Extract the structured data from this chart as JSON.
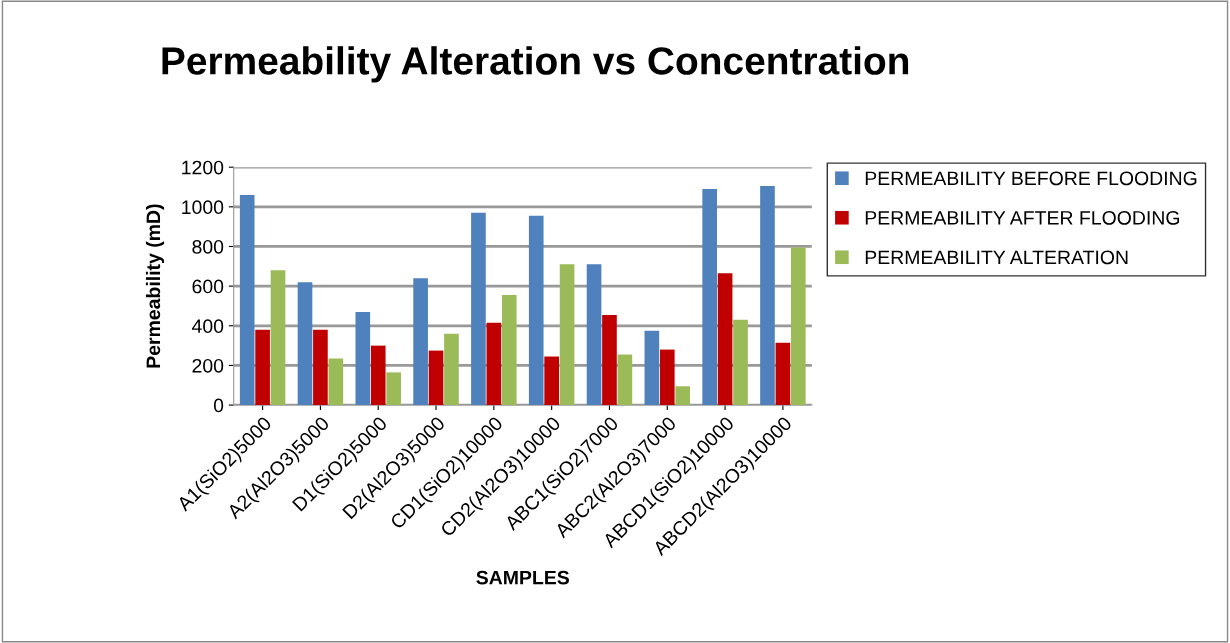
{
  "chart_data": {
    "type": "bar",
    "title": "Permeability Alteration vs Concentration",
    "xlabel": "SAMPLES",
    "ylabel": "Permeability (mD)",
    "categories": [
      "A1(SiO2)5000",
      "A2(Al2O3)5000",
      "D1(SiO2)5000",
      "D2(Al2O3)5000",
      "CD1(SiO2)10000",
      "CD2(Al2O3)10000",
      "ABC1(SiO2)7000",
      "ABC2(Al2O3)7000",
      "ABCD1(SiO2)10000",
      "ABCD2(Al2O3)10000"
    ],
    "series": [
      {
        "name": "PERMEABILITY BEFORE FLOODING",
        "color": "#4f81bd",
        "values": [
          1060,
          620,
          470,
          640,
          970,
          955,
          710,
          375,
          1090,
          1105
        ]
      },
      {
        "name": "PERMEABILITY AFTER FLOODING",
        "color": "#c00000",
        "values": [
          380,
          380,
          300,
          275,
          415,
          245,
          455,
          280,
          665,
          315
        ]
      },
      {
        "name": "PERMEABILITY ALTERATION",
        "color": "#9bbb59",
        "values": [
          680,
          235,
          165,
          360,
          555,
          710,
          255,
          95,
          430,
          795
        ]
      }
    ],
    "ylim": [
      0,
      1200
    ],
    "yticks": [
      0,
      200,
      400,
      600,
      800,
      1000,
      1200
    ],
    "grid": "y",
    "legend": "right"
  }
}
